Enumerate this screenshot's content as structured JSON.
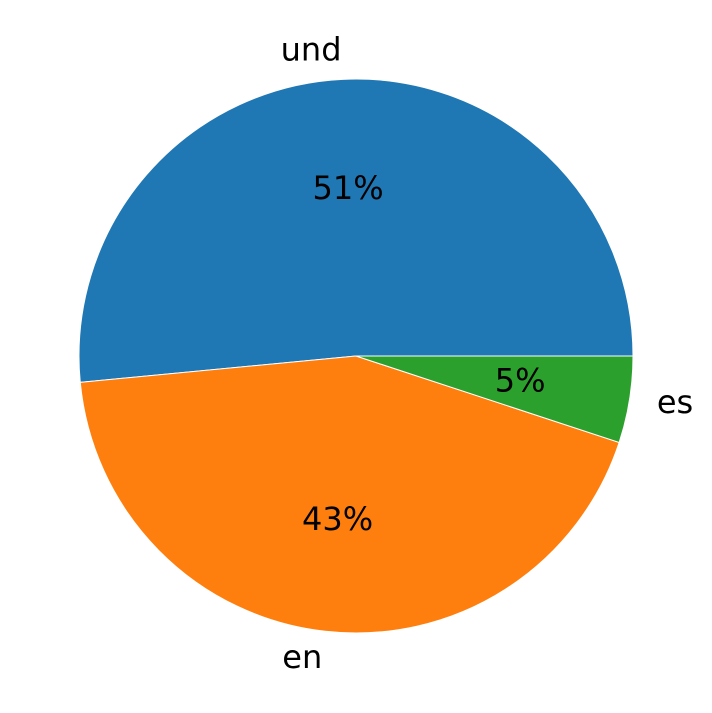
{
  "chart_data": {
    "type": "pie",
    "categories": [
      "und",
      "en",
      "es"
    ],
    "values": [
      51,
      43,
      5
    ],
    "value_labels": [
      "51%",
      "43%",
      "5%"
    ],
    "colors": [
      "#1f77b4",
      "#ff7f0e",
      "#2ca02c"
    ],
    "start_angle": 0,
    "direction": "counterclockwise"
  }
}
